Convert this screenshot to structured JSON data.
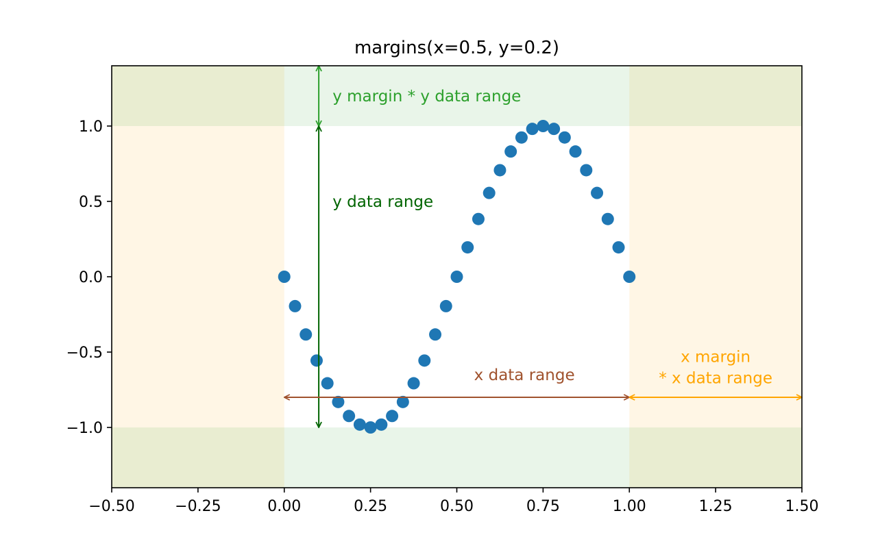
{
  "chart_data": {
    "type": "scatter",
    "title": "margins(x=0.5, y=0.2)",
    "xlabel": "",
    "ylabel": "",
    "xlim": [
      -0.5,
      1.5
    ],
    "ylim": [
      -1.4,
      1.4
    ],
    "grid": false,
    "x_ticks": [
      -0.5,
      -0.25,
      0.0,
      0.25,
      0.5,
      0.75,
      1.0,
      1.25,
      1.5
    ],
    "x_tick_labels": [
      "−0.50",
      "−0.25",
      "0.00",
      "0.25",
      "0.50",
      "0.75",
      "1.00",
      "1.25",
      "1.50"
    ],
    "y_ticks": [
      1.0,
      0.5,
      0.0,
      -0.5,
      -1.0
    ],
    "y_tick_labels": [
      "1.0",
      "0.5",
      "0.0",
      "−0.5",
      "−1.0"
    ],
    "series": [
      {
        "color": "#1f77b4",
        "x": [
          0.0,
          0.03125,
          0.0625,
          0.09375,
          0.125,
          0.15625,
          0.1875,
          0.21875,
          0.25,
          0.28125,
          0.3125,
          0.34375,
          0.375,
          0.40625,
          0.4375,
          0.46875,
          0.5,
          0.53125,
          0.5625,
          0.59375,
          0.625,
          0.65625,
          0.6875,
          0.71875,
          0.75,
          0.78125,
          0.8125,
          0.84375,
          0.875,
          0.90625,
          0.9375,
          0.96875,
          1.0
        ],
        "y": [
          0.0,
          -0.195,
          -0.383,
          -0.556,
          -0.707,
          -0.831,
          -0.924,
          -0.981,
          -1.0,
          -0.981,
          -0.924,
          -0.831,
          -0.707,
          -0.556,
          -0.383,
          -0.195,
          0.0,
          0.195,
          0.383,
          0.556,
          0.707,
          0.831,
          0.924,
          0.981,
          1.0,
          0.981,
          0.924,
          0.831,
          0.707,
          0.556,
          0.383,
          0.195,
          0.0
        ]
      }
    ],
    "regions": {
      "x_margin_color": "#ffa500",
      "y_margin_color": "#2ca02c",
      "x_data_range": [
        0.0,
        1.0
      ],
      "y_data_range": [
        -1.0,
        1.0
      ]
    },
    "annotations": {
      "y_margin_label": "y margin * y data range",
      "y_margin_color": "#2ca02c",
      "y_data_range_label": "y data range",
      "y_data_range_color": "#006400",
      "x_data_range_label": "x data range",
      "x_data_range_color": "#a0522d",
      "x_margin_label_line1": "x margin",
      "x_margin_label_line2": "* x data range",
      "x_margin_color": "#ffa500"
    }
  }
}
